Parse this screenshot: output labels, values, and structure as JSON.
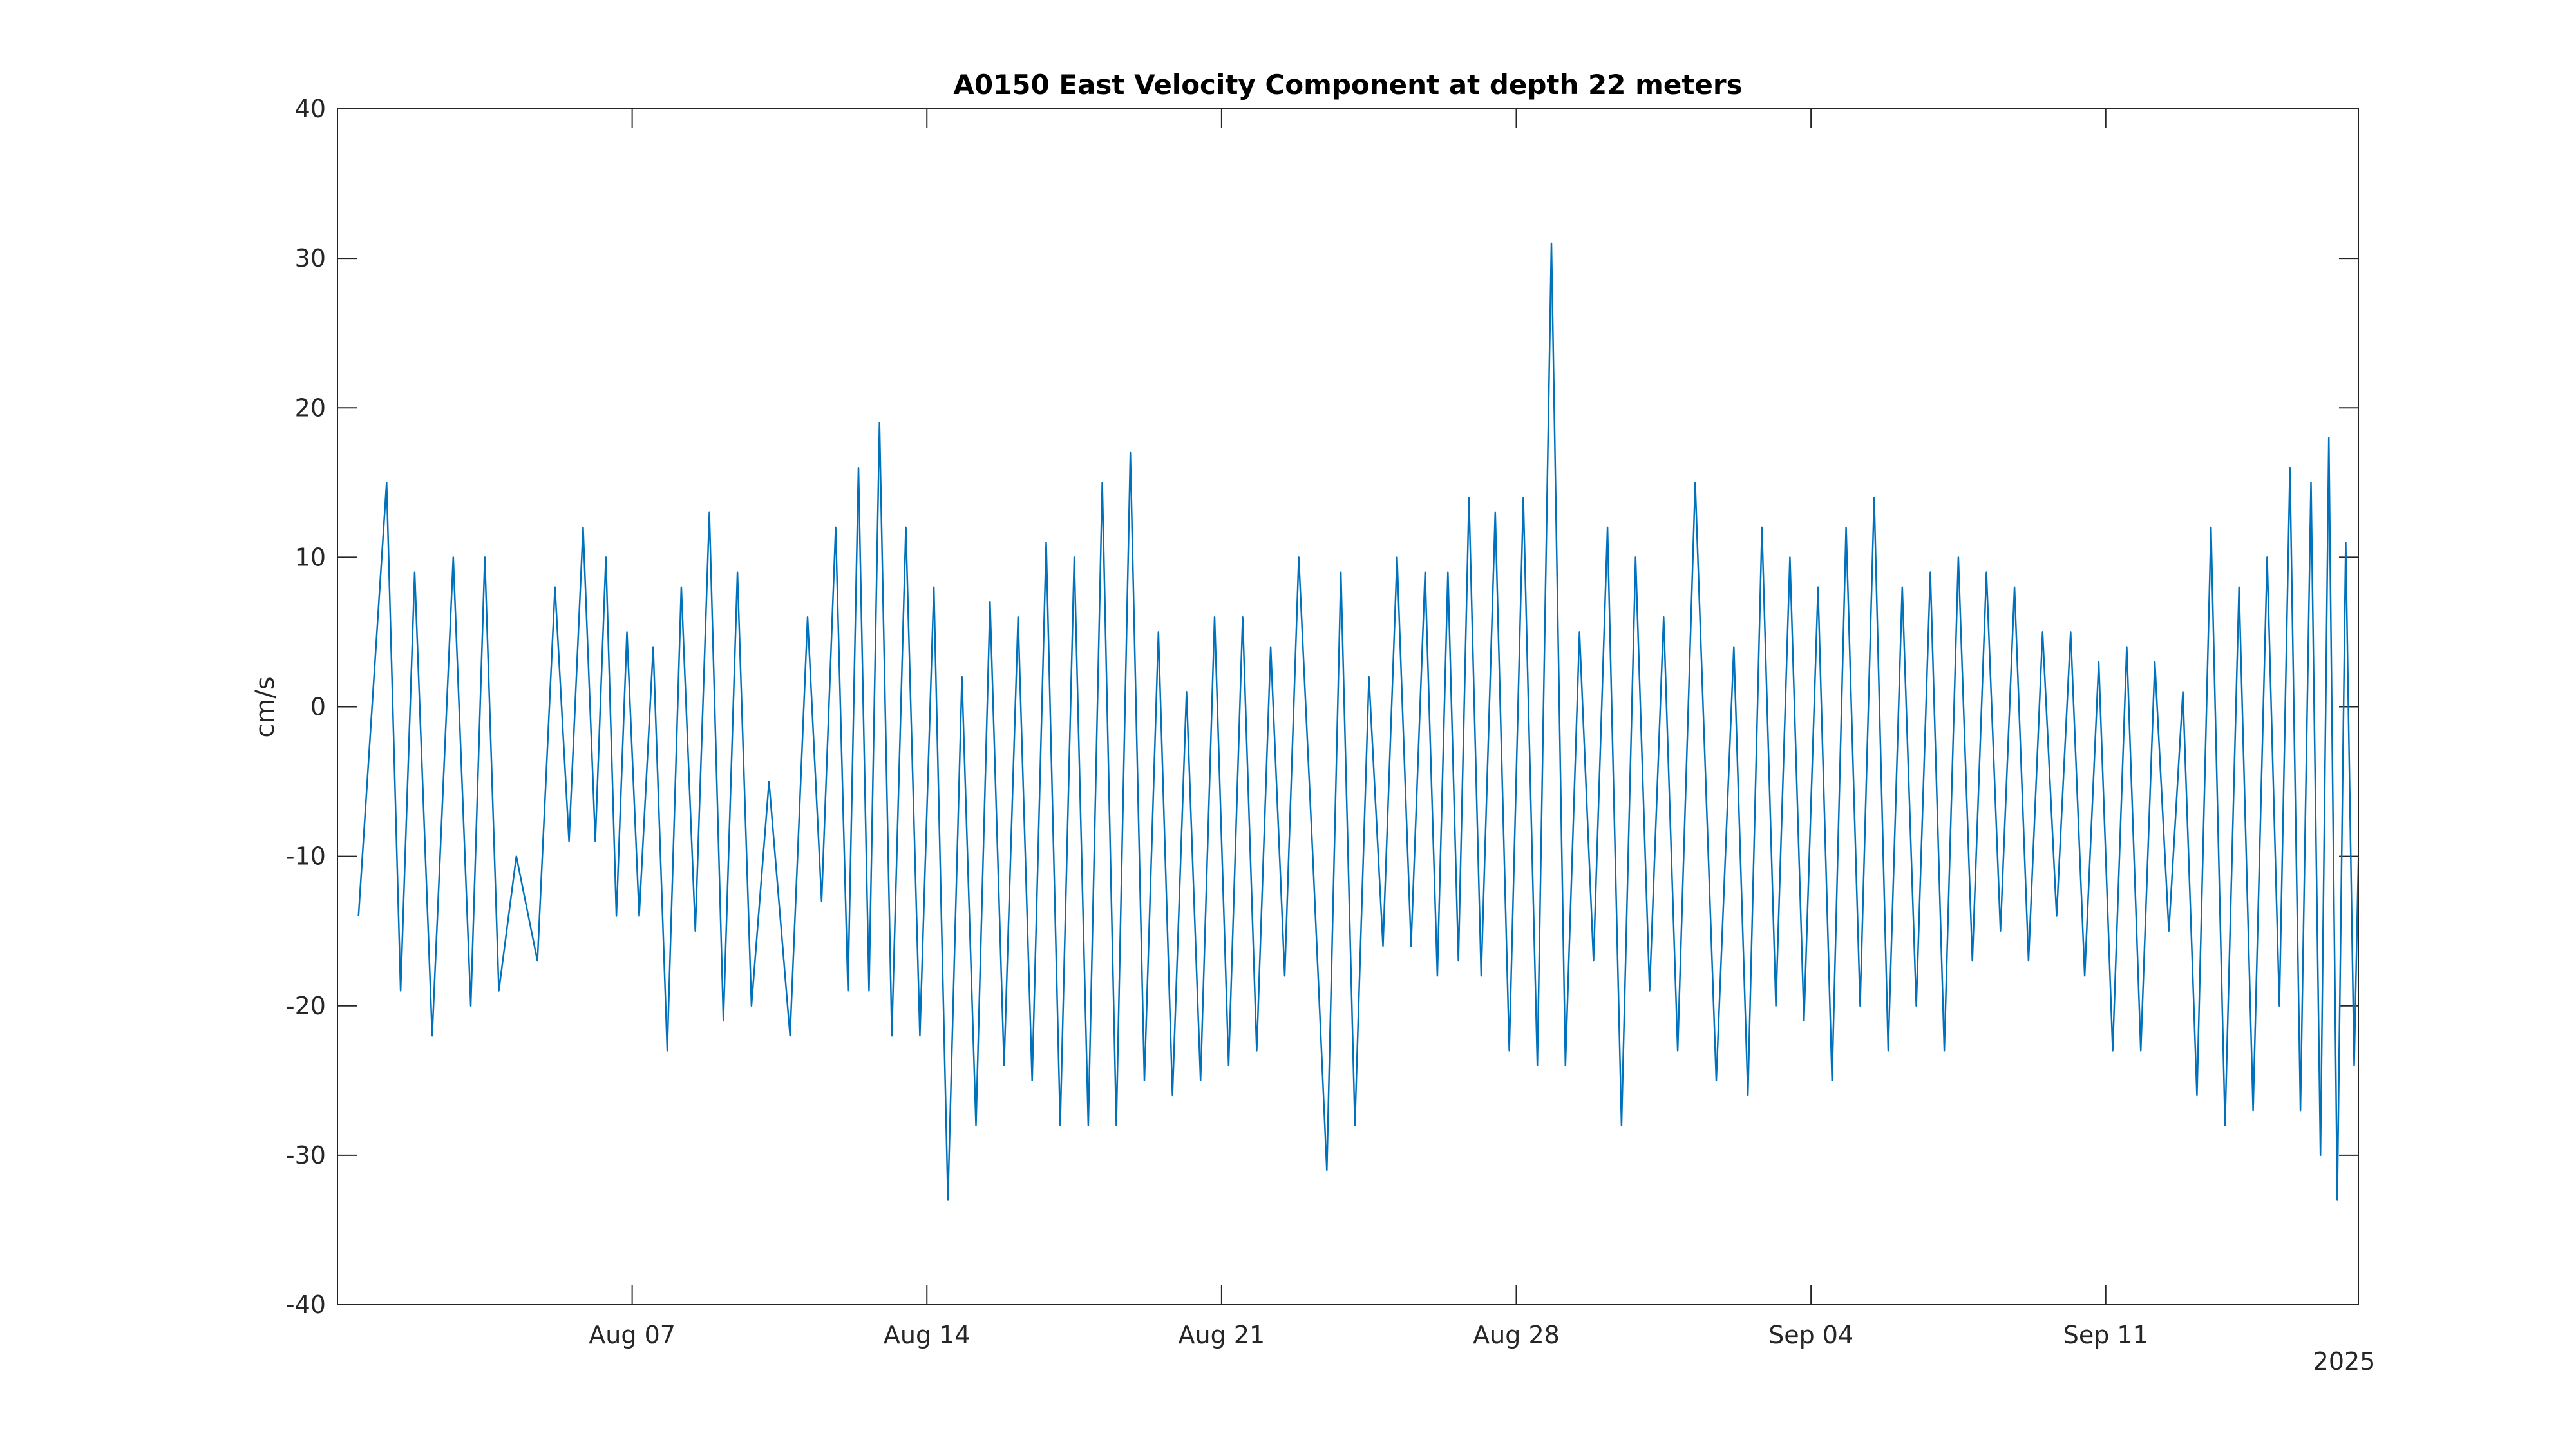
{
  "chart_data": {
    "type": "line",
    "title": "A0150 East Velocity Component at depth 22 meters",
    "xlabel": "",
    "ylabel": "cm/s",
    "x_year_label": "2025",
    "x_range": [
      "2025-07-31",
      "2025-09-17"
    ],
    "ylim": [
      -40,
      40
    ],
    "y_ticks": [
      -40,
      -30,
      -20,
      -10,
      0,
      10,
      20,
      30,
      40
    ],
    "y_tick_labels": [
      "-40",
      "-30",
      "-20",
      "-10",
      "0",
      "10",
      "20",
      "30",
      "40"
    ],
    "x_ticks": [
      {
        "date": "2025-08-07",
        "label": "Aug 07"
      },
      {
        "date": "2025-08-14",
        "label": "Aug 14"
      },
      {
        "date": "2025-08-21",
        "label": "Aug 21"
      },
      {
        "date": "2025-08-28",
        "label": "Aug 28"
      },
      {
        "date": "2025-09-04",
        "label": "Sep 04"
      },
      {
        "date": "2025-09-11",
        "label": "Sep 11"
      }
    ],
    "grid": false,
    "line_color": "#0072bd",
    "series": [
      {
        "name": "",
        "points": [
          [
            "2025-07-31",
            -14
          ],
          [
            "2025-08-01",
            15
          ],
          [
            "2025-08-01",
            -19
          ],
          [
            "2025-08-01",
            9
          ],
          [
            "2025-08-02",
            -22
          ],
          [
            "2025-08-02",
            10
          ],
          [
            "2025-08-03",
            -20
          ],
          [
            "2025-08-03",
            10
          ],
          [
            "2025-08-03",
            -19
          ],
          [
            "2025-08-04",
            -10
          ],
          [
            "2025-08-04",
            -17
          ],
          [
            "2025-08-05",
            8
          ],
          [
            "2025-08-05",
            -9
          ],
          [
            "2025-08-05",
            12
          ],
          [
            "2025-08-06",
            -9
          ],
          [
            "2025-08-06",
            10
          ],
          [
            "2025-08-06",
            -14
          ],
          [
            "2025-08-06",
            5
          ],
          [
            "2025-08-07",
            -14
          ],
          [
            "2025-08-07",
            4
          ],
          [
            "2025-08-07",
            -23
          ],
          [
            "2025-08-08",
            8
          ],
          [
            "2025-08-08",
            -15
          ],
          [
            "2025-08-08",
            13
          ],
          [
            "2025-08-09",
            -21
          ],
          [
            "2025-08-09",
            9
          ],
          [
            "2025-08-09",
            -20
          ],
          [
            "2025-08-10",
            -5
          ],
          [
            "2025-08-10",
            -22
          ],
          [
            "2025-08-11",
            6
          ],
          [
            "2025-08-11",
            -13
          ],
          [
            "2025-08-11",
            12
          ],
          [
            "2025-08-12",
            -19
          ],
          [
            "2025-08-12",
            16
          ],
          [
            "2025-08-12",
            -19
          ],
          [
            "2025-08-12",
            19
          ],
          [
            "2025-08-13",
            -22
          ],
          [
            "2025-08-13",
            12
          ],
          [
            "2025-08-13",
            -22
          ],
          [
            "2025-08-14",
            8
          ],
          [
            "2025-08-14",
            -33
          ],
          [
            "2025-08-14",
            2
          ],
          [
            "2025-08-15",
            -28
          ],
          [
            "2025-08-15",
            7
          ],
          [
            "2025-08-15",
            -24
          ],
          [
            "2025-08-16",
            6
          ],
          [
            "2025-08-16",
            -25
          ],
          [
            "2025-08-16",
            11
          ],
          [
            "2025-08-17",
            -28
          ],
          [
            "2025-08-17",
            10
          ],
          [
            "2025-08-17",
            -28
          ],
          [
            "2025-08-18",
            15
          ],
          [
            "2025-08-18",
            -28
          ],
          [
            "2025-08-18",
            17
          ],
          [
            "2025-08-19",
            -25
          ],
          [
            "2025-08-19",
            5
          ],
          [
            "2025-08-19",
            -26
          ],
          [
            "2025-08-20",
            1
          ],
          [
            "2025-08-20",
            -25
          ],
          [
            "2025-08-20",
            6
          ],
          [
            "2025-08-21",
            -24
          ],
          [
            "2025-08-21",
            6
          ],
          [
            "2025-08-21",
            -23
          ],
          [
            "2025-08-22",
            4
          ],
          [
            "2025-08-22",
            -18
          ],
          [
            "2025-08-22",
            10
          ],
          [
            "2025-08-23",
            -10
          ],
          [
            "2025-08-23",
            -31
          ],
          [
            "2025-08-23",
            9
          ],
          [
            "2025-08-24",
            -28
          ],
          [
            "2025-08-24",
            2
          ],
          [
            "2025-08-24",
            -16
          ],
          [
            "2025-08-25",
            10
          ],
          [
            "2025-08-25",
            -16
          ],
          [
            "2025-08-25",
            9
          ],
          [
            "2025-08-26",
            -18
          ],
          [
            "2025-08-26",
            9
          ],
          [
            "2025-08-26",
            -17
          ],
          [
            "2025-08-26",
            14
          ],
          [
            "2025-08-27",
            -18
          ],
          [
            "2025-08-27",
            13
          ],
          [
            "2025-08-27",
            -23
          ],
          [
            "2025-08-28",
            14
          ],
          [
            "2025-08-28",
            -24
          ],
          [
            "2025-08-28",
            31
          ],
          [
            "2025-08-29",
            -24
          ],
          [
            "2025-08-29",
            5
          ],
          [
            "2025-08-29",
            -17
          ],
          [
            "2025-08-30",
            12
          ],
          [
            "2025-08-30",
            -28
          ],
          [
            "2025-08-30",
            10
          ],
          [
            "2025-08-31",
            -19
          ],
          [
            "2025-08-31",
            6
          ],
          [
            "2025-08-31",
            -23
          ],
          [
            "2025-09-01",
            15
          ],
          [
            "2025-09-01",
            -25
          ],
          [
            "2025-09-02",
            4
          ],
          [
            "2025-09-02",
            -26
          ],
          [
            "2025-09-02",
            12
          ],
          [
            "2025-09-03",
            -20
          ],
          [
            "2025-09-03",
            10
          ],
          [
            "2025-09-03",
            -21
          ],
          [
            "2025-09-04",
            8
          ],
          [
            "2025-09-04",
            -25
          ],
          [
            "2025-09-04",
            12
          ],
          [
            "2025-09-05",
            -20
          ],
          [
            "2025-09-05",
            14
          ],
          [
            "2025-09-05",
            -23
          ],
          [
            "2025-09-06",
            8
          ],
          [
            "2025-09-06",
            -20
          ],
          [
            "2025-09-06",
            9
          ],
          [
            "2025-09-07",
            -23
          ],
          [
            "2025-09-07",
            10
          ],
          [
            "2025-09-07",
            -17
          ],
          [
            "2025-09-08",
            9
          ],
          [
            "2025-09-08",
            -15
          ],
          [
            "2025-09-08",
            8
          ],
          [
            "2025-09-09",
            -17
          ],
          [
            "2025-09-09",
            5
          ],
          [
            "2025-09-09",
            -14
          ],
          [
            "2025-09-10",
            5
          ],
          [
            "2025-09-10",
            -18
          ],
          [
            "2025-09-10",
            3
          ],
          [
            "2025-09-11",
            -23
          ],
          [
            "2025-09-11",
            4
          ],
          [
            "2025-09-11",
            -23
          ],
          [
            "2025-09-12",
            3
          ],
          [
            "2025-09-12",
            -15
          ],
          [
            "2025-09-12",
            1
          ],
          [
            "2025-09-13",
            -26
          ],
          [
            "2025-09-13",
            12
          ],
          [
            "2025-09-13",
            -28
          ],
          [
            "2025-09-14",
            8
          ],
          [
            "2025-09-14",
            -27
          ],
          [
            "2025-09-14",
            10
          ],
          [
            "2025-09-15",
            -20
          ],
          [
            "2025-09-15",
            16
          ],
          [
            "2025-09-15",
            -27
          ],
          [
            "2025-09-15",
            15
          ],
          [
            "2025-09-16",
            -30
          ],
          [
            "2025-09-16",
            18
          ],
          [
            "2025-09-16",
            -33
          ],
          [
            "2025-09-16",
            11
          ],
          [
            "2025-09-16",
            -24
          ],
          [
            "2025-09-17",
            12
          ],
          [
            "2025-09-17",
            -24
          ],
          [
            "2025-09-17",
            7
          ]
        ]
      }
    ]
  }
}
